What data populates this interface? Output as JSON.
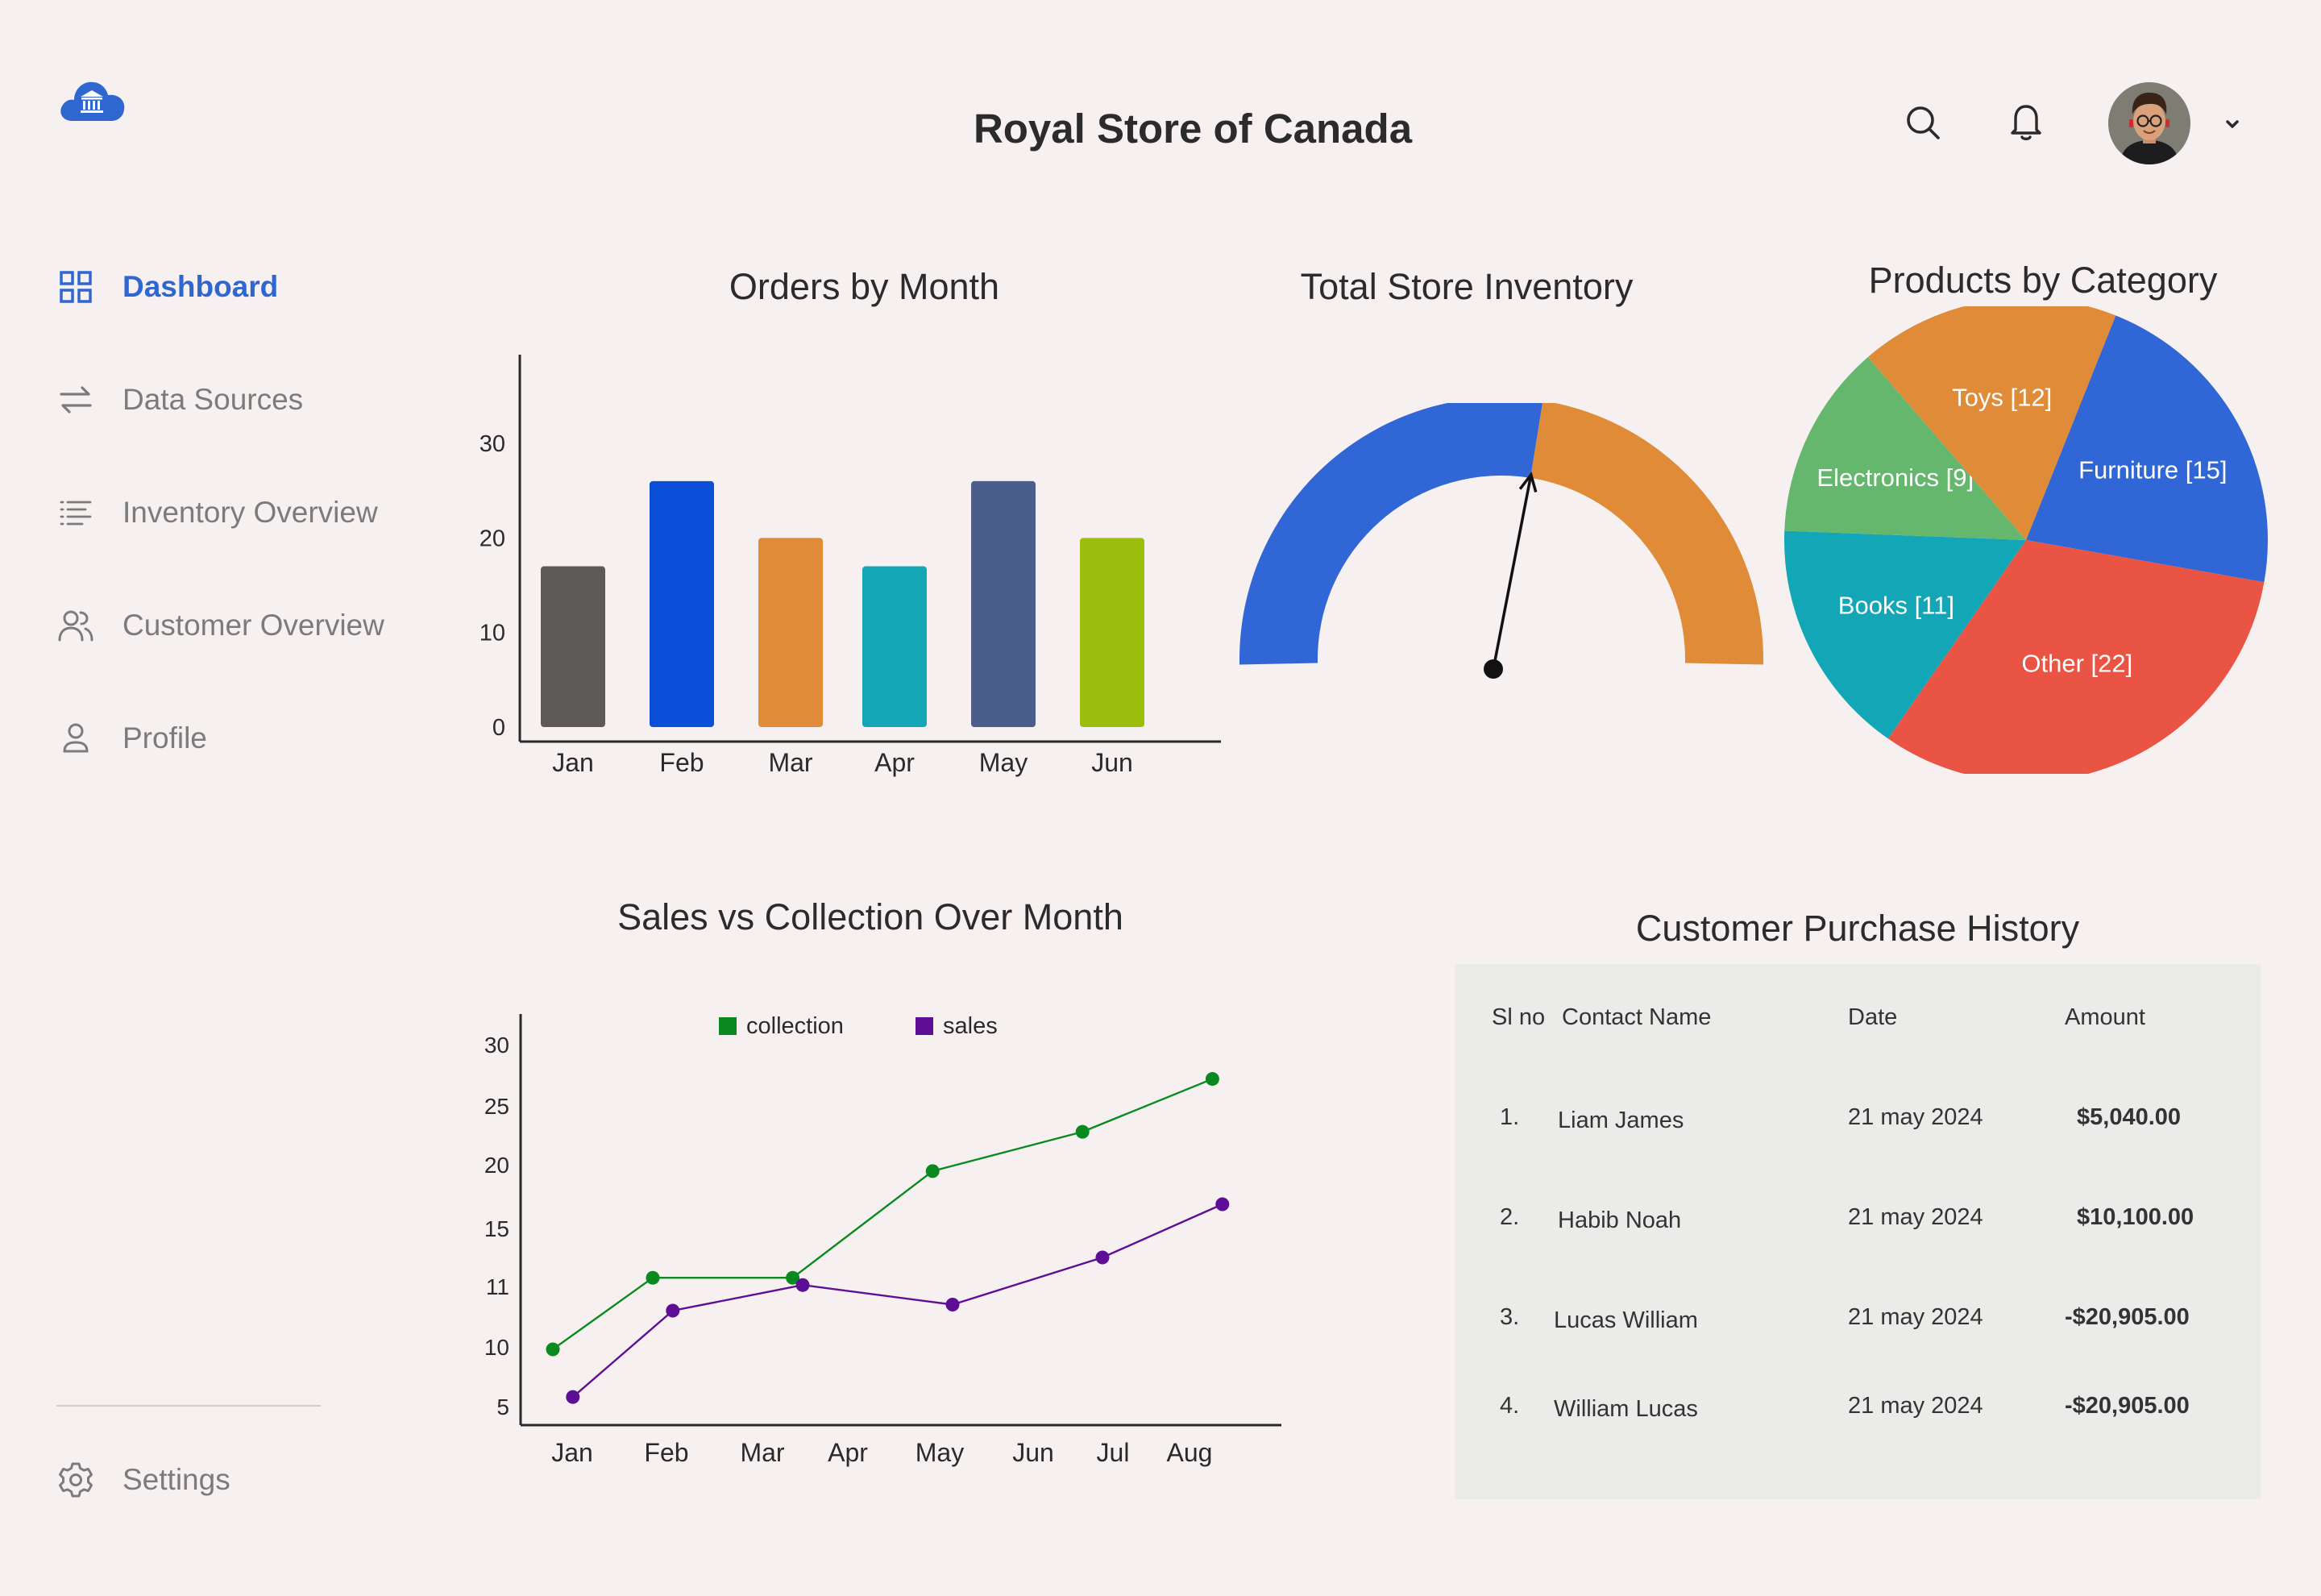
{
  "app": {
    "title": "Royal Store of Canada"
  },
  "sidebar": {
    "items": [
      {
        "label": "Dashboard",
        "icon": "grid-icon",
        "active": true
      },
      {
        "label": "Data Sources",
        "icon": "swap-arrows-icon",
        "active": false
      },
      {
        "label": "Inventory Overview",
        "icon": "list-icon",
        "active": false
      },
      {
        "label": "Customer Overview",
        "icon": "users-icon",
        "active": false
      },
      {
        "label": "Profile",
        "icon": "user-icon",
        "active": false
      }
    ],
    "settings_label": "Settings"
  },
  "header": {
    "search_icon": "search-icon",
    "notification_icon": "bell-icon",
    "avatar": "user-avatar",
    "menu_icon": "chevron-down-icon"
  },
  "colors": {
    "accent": "#2f66d0",
    "background": "#f6f1f0",
    "table_bg": "#ebebea"
  },
  "charts": {
    "orders_title": "Orders by Month",
    "inventory_title": "Total Store Inventory",
    "category_title": "Products by Category",
    "sales_title": "Sales vs Collection Over Month"
  },
  "chart_data": [
    {
      "type": "bar",
      "title": "Orders by Month",
      "categories": [
        "Jan",
        "Feb",
        "Mar",
        "Apr",
        "May",
        "Jun"
      ],
      "values": [
        17,
        26,
        20,
        17,
        26,
        20
      ],
      "colors": [
        "#5e5a5a",
        "#0b4fd9",
        "#e08b38",
        "#12a6b6",
        "#4a5e8e",
        "#9bbd0b"
      ],
      "yticks": [
        0,
        10,
        20,
        30
      ],
      "ylim": [
        0,
        36
      ],
      "xlabel": "",
      "ylabel": ""
    },
    {
      "type": "gauge",
      "title": "Total Store Inventory",
      "value": 0.55,
      "segments": [
        {
          "color": "#3166d6",
          "fraction": 0.55
        },
        {
          "color": "#e08b38",
          "fraction": 0.45
        }
      ]
    },
    {
      "type": "pie",
      "title": "Products by Category",
      "slices": [
        {
          "label": "Furniture [15]",
          "value": 15,
          "color": "#3166d6"
        },
        {
          "label": "Other [22]",
          "value": 22,
          "color": "#e95444"
        },
        {
          "label": "Books [11]",
          "value": 11,
          "color": "#12a6b6"
        },
        {
          "label": "Electronics [9]",
          "value": 9,
          "color": "#66b76e"
        },
        {
          "label": "Toys [12]",
          "value": 12,
          "color": "#e08b38"
        }
      ]
    },
    {
      "type": "line",
      "title": "Sales vs Collection Over Month",
      "categories": [
        "Jan",
        "Feb",
        "Mar",
        "Apr",
        "May",
        "Jun",
        "Jul",
        "Aug"
      ],
      "yticks": [
        "5",
        "10",
        "11",
        "15",
        "20",
        "25",
        "30"
      ],
      "series": [
        {
          "name": "collection",
          "color": "#0a8a1e",
          "x": [
            0.0,
            1.0,
            2.4,
            3.8,
            5.3,
            6.6
          ],
          "values": [
            9.8,
            11.6,
            11.6,
            19.5,
            22.8,
            27.2
          ]
        },
        {
          "name": "sales",
          "color": "#5e0e96",
          "x": [
            0.2,
            1.2,
            2.5,
            4.0,
            5.5,
            6.7
          ],
          "values": [
            5.8,
            10.6,
            11.1,
            10.7,
            13.0,
            16.9
          ]
        }
      ]
    }
  ],
  "purchase_history": {
    "title": "Customer Purchase History",
    "headers": [
      "Sl no",
      "Contact Name",
      "Date",
      "Amount"
    ],
    "rows": [
      {
        "no": "1.",
        "name": "Liam James",
        "date": "21 may 2024",
        "amount": "$5,040.00"
      },
      {
        "no": "2.",
        "name": "Habib Noah",
        "date": "21 may 2024",
        "amount": "$10,100.00"
      },
      {
        "no": "3.",
        "name": "Lucas William",
        "date": "21 may 2024",
        "amount": "-$20,905.00"
      },
      {
        "no": "4.",
        "name": "William Lucas",
        "date": "21 may 2024",
        "amount": "-$20,905.00"
      }
    ]
  }
}
